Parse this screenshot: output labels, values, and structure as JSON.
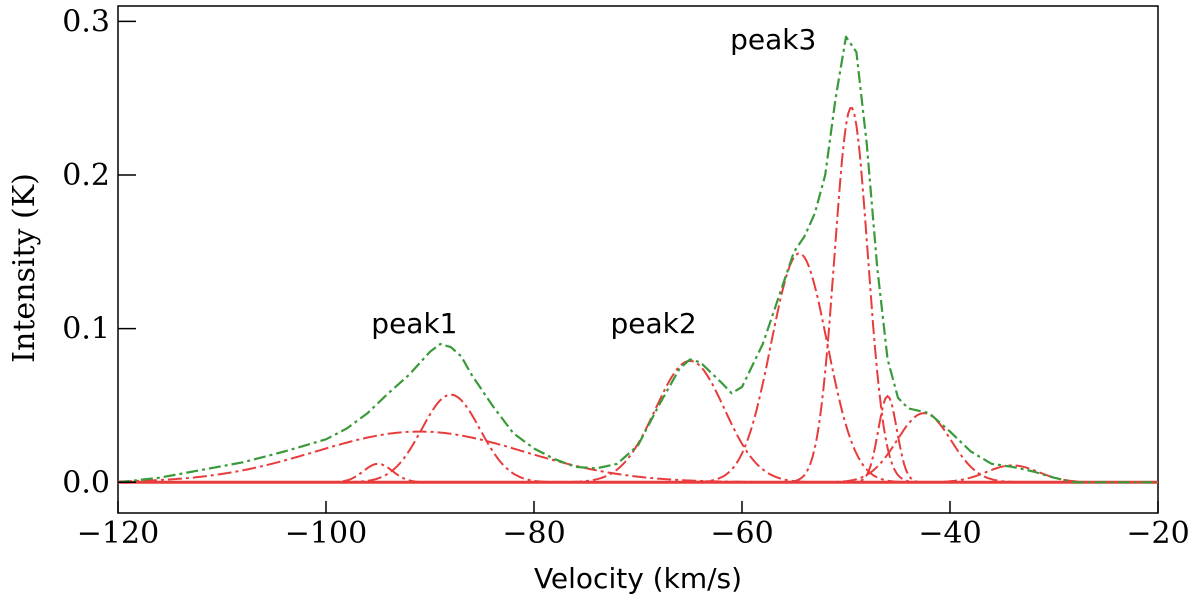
{
  "chart_data": {
    "type": "line",
    "title": "",
    "xlabel": "Velocity (km/s)",
    "ylabel": "Intensity (K)",
    "xlim": [
      -120,
      -20
    ],
    "ylim": [
      -0.02,
      0.31
    ],
    "x_ticks": [
      -120,
      -100,
      -80,
      -60,
      -40,
      -20
    ],
    "x_tick_labels": [
      "−120",
      "−100",
      "−80",
      "−60",
      "−40",
      "−20"
    ],
    "y_ticks": [
      0.0,
      0.1,
      0.2,
      0.3
    ],
    "y_tick_labels": [
      "0.0",
      "0.1",
      "0.2",
      "0.3"
    ],
    "grid": false,
    "legend": "none",
    "series": [
      {
        "role": "observed_spectrum",
        "color": "#3a9a3a",
        "style": "dash-dot",
        "x": [
          -120,
          -116,
          -112,
          -108,
          -104,
          -100,
          -98,
          -96,
          -94,
          -92,
          -90,
          -89,
          -88,
          -87,
          -86,
          -84,
          -82,
          -80,
          -78,
          -76,
          -74,
          -72,
          -70,
          -68,
          -66,
          -65,
          -64,
          -62,
          -61,
          -60,
          -58,
          -56,
          -55,
          -54,
          -53,
          -52,
          -51,
          -50,
          -49,
          -48,
          -47,
          -46,
          -45,
          -44,
          -42,
          -40,
          -38,
          -36,
          -34,
          -32,
          -30,
          -28,
          -26,
          -24,
          -22,
          -20
        ],
        "y": [
          0.0,
          0.003,
          0.008,
          0.013,
          0.02,
          0.028,
          0.035,
          0.045,
          0.058,
          0.07,
          0.085,
          0.09,
          0.088,
          0.082,
          0.07,
          0.05,
          0.032,
          0.022,
          0.015,
          0.01,
          0.009,
          0.012,
          0.024,
          0.05,
          0.074,
          0.08,
          0.078,
          0.065,
          0.058,
          0.062,
          0.09,
          0.13,
          0.15,
          0.16,
          0.175,
          0.2,
          0.25,
          0.29,
          0.28,
          0.22,
          0.14,
          0.08,
          0.055,
          0.048,
          0.045,
          0.033,
          0.02,
          0.012,
          0.01,
          0.007,
          0.003,
          0.0,
          0.0,
          0.0,
          0.0,
          0.0
        ]
      },
      {
        "role": "gaussian_component",
        "color": "#e83c3c",
        "amplitude": 0.033,
        "center": -91.0,
        "sigma": 10.0
      },
      {
        "role": "gaussian_component",
        "color": "#e83c3c",
        "amplitude": 0.057,
        "center": -88.0,
        "sigma": 2.8
      },
      {
        "role": "gaussian_component",
        "color": "#e83c3c",
        "amplitude": 0.012,
        "center": -95.0,
        "sigma": 1.4
      },
      {
        "role": "gaussian_component",
        "color": "#e83c3c",
        "amplitude": 0.079,
        "center": -65.0,
        "sigma": 3.3
      },
      {
        "role": "gaussian_component",
        "color": "#e83c3c",
        "amplitude": 0.149,
        "center": -54.5,
        "sigma": 2.7
      },
      {
        "role": "gaussian_component",
        "color": "#e83c3c",
        "amplitude": 0.244,
        "center": -49.5,
        "sigma": 1.6
      },
      {
        "role": "gaussian_component",
        "color": "#e83c3c",
        "amplitude": 0.056,
        "center": -46.0,
        "sigma": 0.9
      },
      {
        "role": "gaussian_component",
        "color": "#e83c3c",
        "amplitude": 0.045,
        "center": -42.5,
        "sigma": 2.6
      },
      {
        "role": "gaussian_component",
        "color": "#e83c3c",
        "amplitude": 0.011,
        "center": -34.0,
        "sigma": 2.5
      }
    ],
    "annotations": [
      {
        "text": "peak1",
        "x": -91.5,
        "y": 0.097
      },
      {
        "text": "peak2",
        "x": -68.5,
        "y": 0.097
      },
      {
        "text": "peak3",
        "x": -57.0,
        "y": 0.282
      }
    ]
  }
}
